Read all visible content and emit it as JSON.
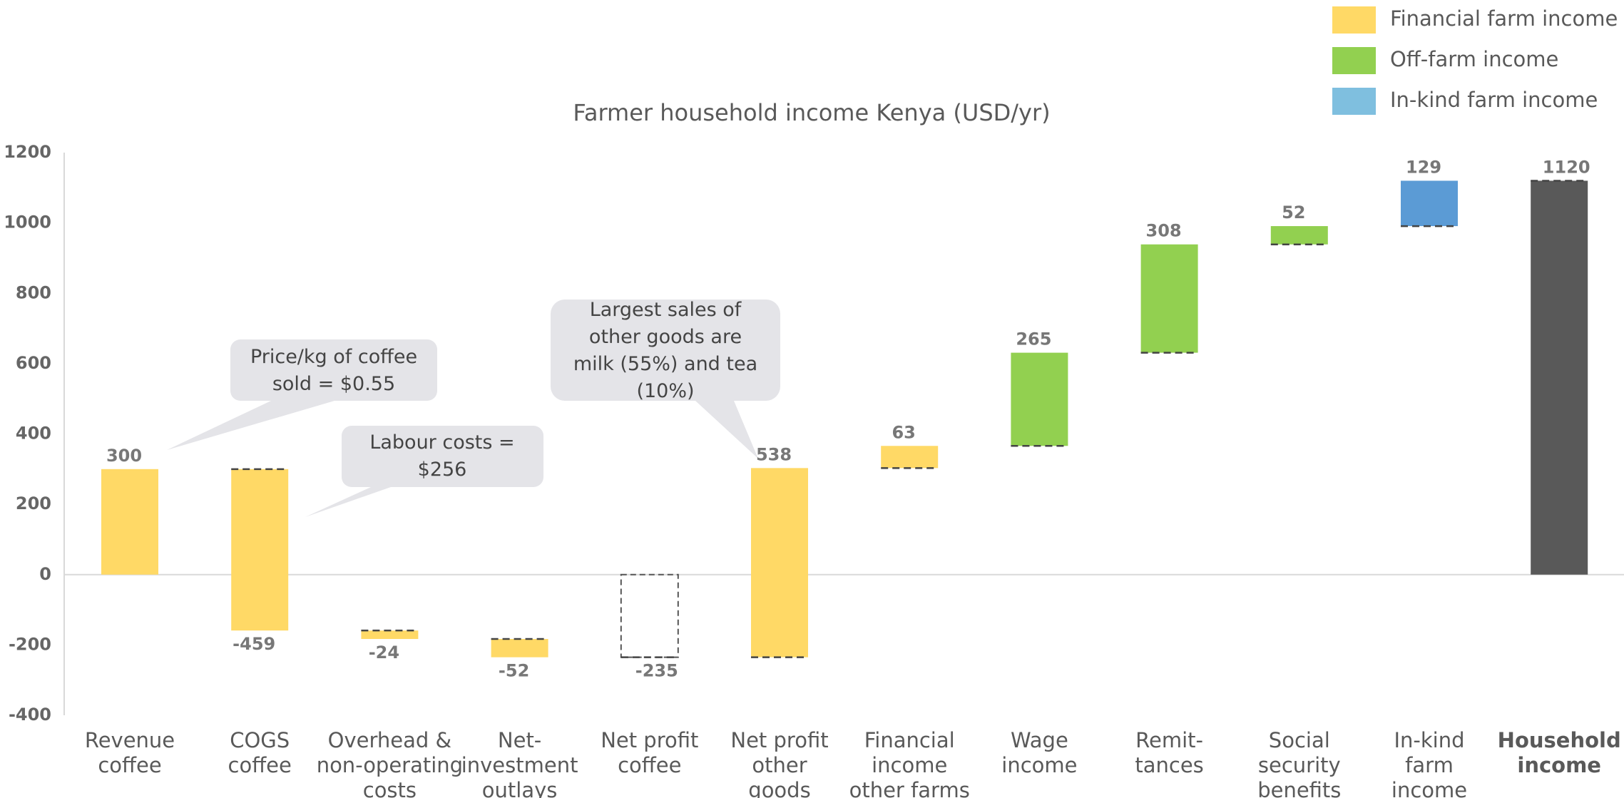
{
  "chart_data": {
    "type": "waterfall",
    "title": "Farmer household income Kenya (USD/yr)",
    "categories": [
      "Revenue\ncoffee",
      "COGS\ncoffee",
      "Overhead &\nnon-operating\ncosts",
      "Net-\ninvestment\noutlays",
      "Net profit\ncoffee",
      "Net profit\nother\ngoods",
      "Financial\nincome\nother farms",
      "Wage\nincome",
      "Remit-\ntances",
      "Social\nsecurity\nbenefits",
      "In-kind\nfarm\nincome",
      "Household\nincome"
    ],
    "values": [
      300,
      -459,
      -24,
      -52,
      -235,
      538,
      63,
      265,
      308,
      52,
      129,
      1120
    ],
    "colors": [
      "#FFD966",
      "#FFD966",
      "#FFD966",
      "#FFD966",
      null,
      "#FFD966",
      "#FFD966",
      "#92D050",
      "#92D050",
      "#92D050",
      "#5B9BD5",
      "#595959"
    ],
    "ylim": [
      -400,
      1200
    ],
    "yticks": [
      -400,
      -200,
      0,
      200,
      400,
      600,
      800,
      1000,
      1200
    ],
    "legend": [
      {
        "name": "Financial farm income",
        "color": "#FFD966"
      },
      {
        "name": "Off-farm income",
        "color": "#92D050"
      },
      {
        "name": "In-kind farm income",
        "color": "#7FBFDF"
      }
    ],
    "annotations": [
      "Price/kg of coffee\nsold =  $0.55",
      "Labour costs =\n$256",
      "Largest sales of\nother goods are\nmilk (55%) and tea\n(10%)"
    ]
  }
}
